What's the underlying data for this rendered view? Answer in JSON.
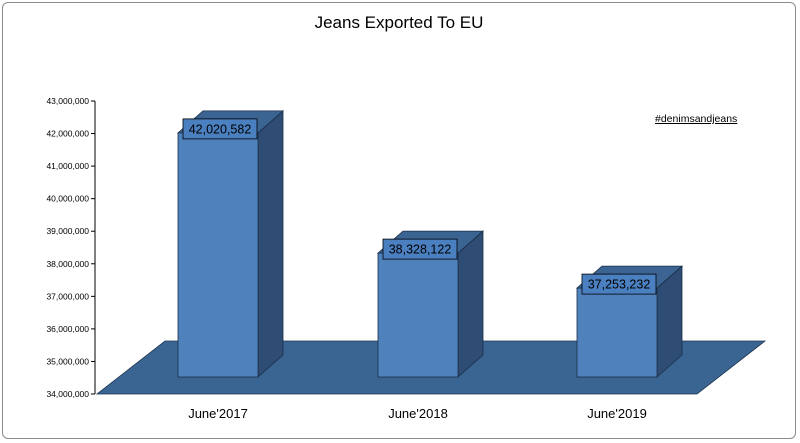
{
  "chart_data": {
    "type": "bar",
    "title": "Jeans Exported To EU",
    "annotation": "#denimsandjeans",
    "categories": [
      "June'2017",
      "June'2018",
      "June'2019"
    ],
    "series": [
      {
        "values": [
          42020582,
          38328122,
          37253232
        ]
      }
    ],
    "data_labels": [
      "42,020,582",
      "38,328,122",
      "37,253,232"
    ],
    "y_ticks": [
      {
        "value": 34000000,
        "label": "34,000,000"
      },
      {
        "value": 35000000,
        "label": "35,000,000"
      },
      {
        "value": 36000000,
        "label": "36,000,000"
      },
      {
        "value": 37000000,
        "label": "37,000,000"
      },
      {
        "value": 38000000,
        "label": "38,000,000"
      },
      {
        "value": 39000000,
        "label": "39,000,000"
      },
      {
        "value": 40000000,
        "label": "40,000,000"
      },
      {
        "value": 41000000,
        "label": "41,000,000"
      },
      {
        "value": 42000000,
        "label": "42,000,000"
      },
      {
        "value": 43000000,
        "label": "43,000,000"
      }
    ],
    "ylim": [
      34000000,
      43000000
    ],
    "grid": false,
    "legend": "none",
    "style": "3d",
    "colors": {
      "bar_front": "#4f81bd",
      "bar_side": "#2e4c74",
      "bar_top": "#3c6493",
      "floor": "#3a6491",
      "label_box": "#4a7fc0"
    }
  }
}
